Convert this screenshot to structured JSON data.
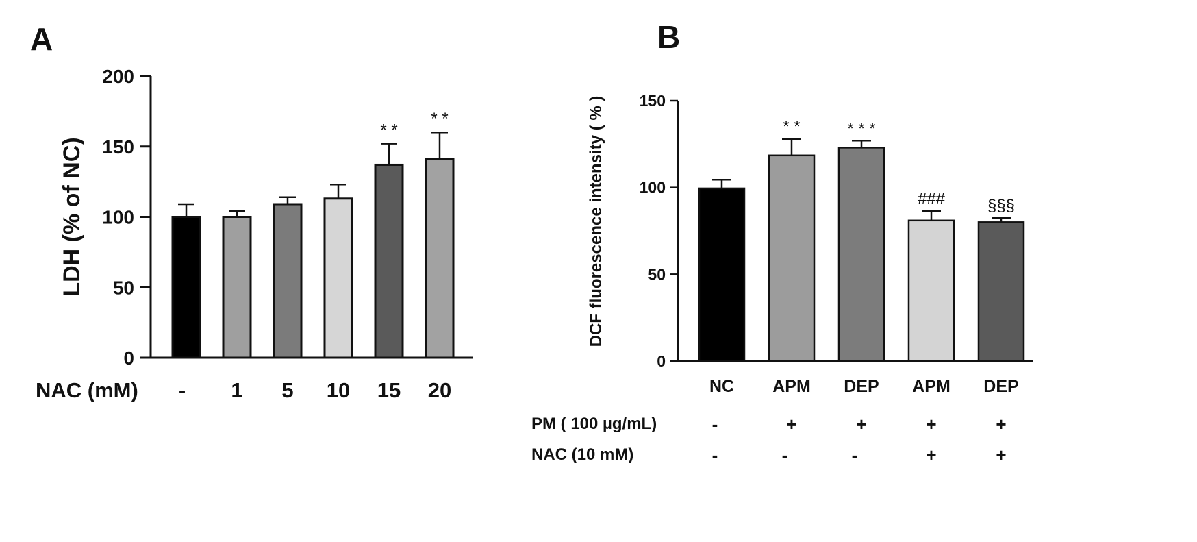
{
  "chart_data": [
    {
      "type": "bar",
      "panel": "A",
      "title": "",
      "xlabel": "NAC (mM)",
      "ylabel": "LDH (% of NC)",
      "ylim": [
        0,
        200
      ],
      "yticks": [
        0,
        50,
        100,
        150,
        200
      ],
      "categories": [
        "-",
        "1",
        "5",
        "10",
        "15",
        "20"
      ],
      "values": [
        100,
        100,
        109,
        113,
        137,
        141
      ],
      "errors": [
        9,
        4,
        5,
        10,
        15,
        19
      ],
      "colors": [
        "#000000",
        "#9f9f9f",
        "#7b7b7b",
        "#d6d6d6",
        "#5a5a5a",
        "#a2a2a2"
      ],
      "annotations": [
        "",
        "",
        "",
        "",
        "* *",
        "* *"
      ],
      "grid": false
    },
    {
      "type": "bar",
      "panel": "B",
      "title": "",
      "xlabel": "",
      "ylabel": "DCF  fluorescence intensity ( % )",
      "ylim": [
        0,
        150
      ],
      "yticks": [
        0,
        50,
        100,
        150
      ],
      "categories": [
        "NC",
        "APM",
        "DEP",
        "APM",
        "DEP"
      ],
      "values": [
        99.5,
        118.5,
        123,
        81,
        80
      ],
      "errors": [
        5,
        9.5,
        4,
        5.5,
        2.5
      ],
      "colors": [
        "#000000",
        "#9c9c9c",
        "#7c7c7c",
        "#d4d4d4",
        "#5a5a5a"
      ],
      "annotations": [
        "",
        "* *",
        "* * *",
        "###",
        "§§§"
      ],
      "treatment_rows": [
        {
          "label": "PM ( 100 µg/mL)",
          "signs": [
            "-",
            "+",
            "+",
            "+",
            "+"
          ]
        },
        {
          "label": "NAC (10 mM)",
          "signs": [
            "-",
            "-",
            "-",
            "+",
            "+"
          ]
        }
      ],
      "grid": false
    }
  ]
}
